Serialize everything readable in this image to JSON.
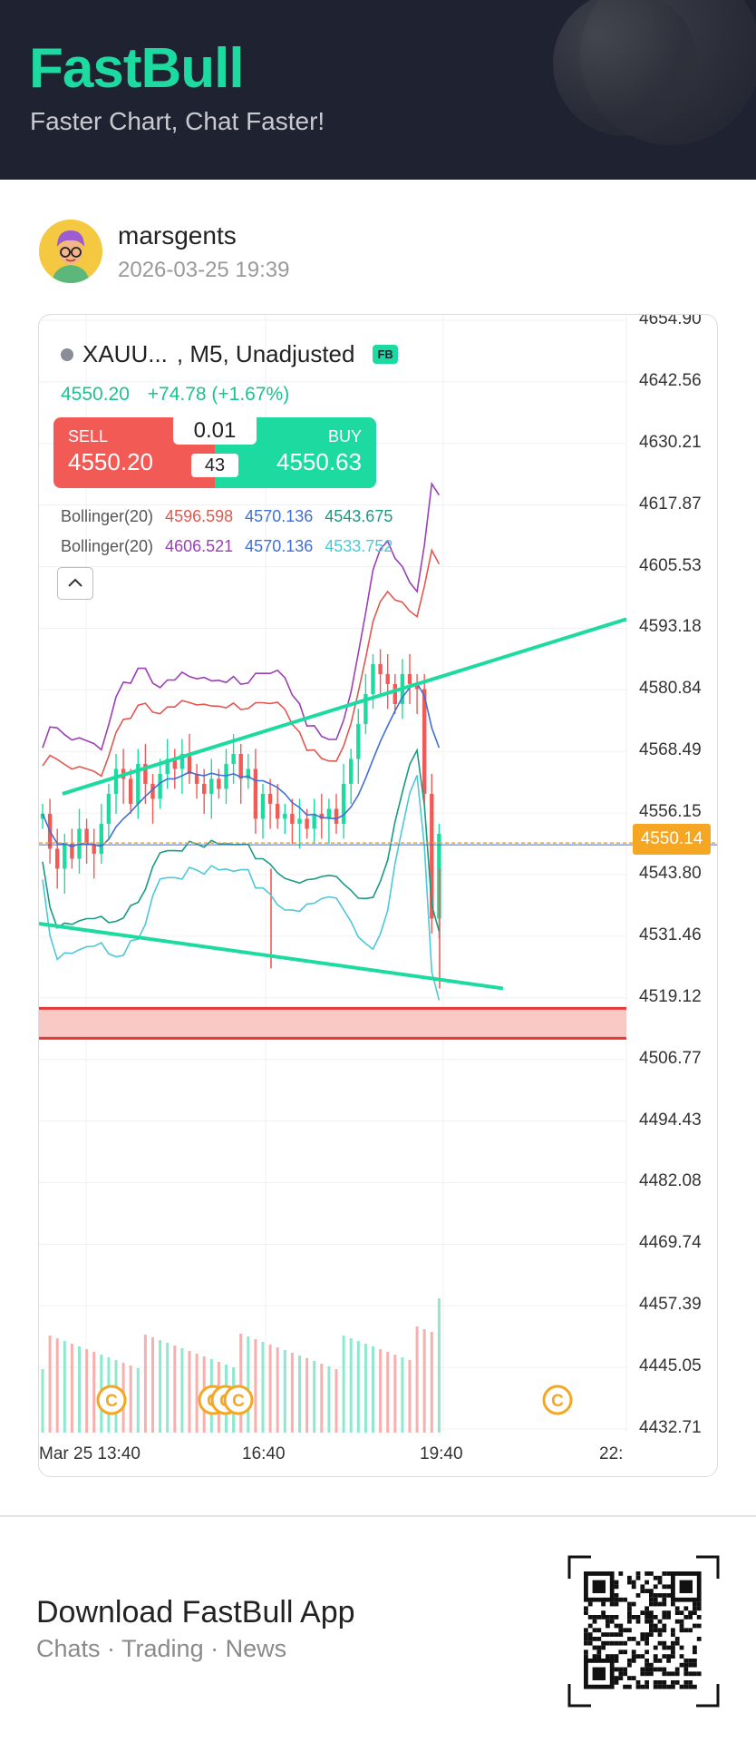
{
  "header": {
    "brand": "FastBull",
    "tagline": "Faster Chart, Chat Faster!"
  },
  "post": {
    "username": "marsgents",
    "timestamp": "2026-03-25 19:39",
    "avatar_icon": "avatar-cartoon"
  },
  "chart_widget": {
    "symbol": "XAUU...",
    "timeframe": ", M5, Unadjusted",
    "badge": "FB",
    "last_price": "4550.20",
    "change": "+74.78 (+1.67%)",
    "trade": {
      "sell_label": "SELL",
      "sell_price": "4550.20",
      "buy_label": "BUY",
      "buy_price": "4550.63",
      "lot": "0.01",
      "spread": "43"
    },
    "bollinger1": {
      "label": "Bollinger(20)",
      "upper": "4596.598",
      "middle": "4570.136",
      "lower": "4543.675"
    },
    "bollinger2": {
      "label": "Bollinger(20)",
      "upper": "4606.521",
      "middle": "4570.136",
      "lower": "4533.752"
    },
    "current_price_tag": "4550.14",
    "colors": {
      "up": "#1ddba0",
      "down": "#f25a56",
      "boll1_upper": "#e0584f",
      "boll1_mid": "#3f6fd8",
      "boll1_lower": "#1a9a82",
      "boll2_upper": "#9b3fb5",
      "boll2_lower": "#4cc8d8",
      "price_tag": "#f5a623"
    }
  },
  "chart_data": {
    "type": "candlestick",
    "y_ticks": [
      "4654.90",
      "4642.56",
      "4630.21",
      "4617.87",
      "4605.53",
      "4593.18",
      "4580.84",
      "4568.49",
      "4556.15",
      "4543.80",
      "4531.46",
      "4519.12",
      "4506.77",
      "4494.43",
      "4482.08",
      "4469.74",
      "4457.39",
      "4445.05",
      "4432.71"
    ],
    "x_ticks": [
      "Mar 25 13:40",
      "16:40",
      "19:40",
      "22:"
    ],
    "ylim": [
      4432.71,
      4654.9
    ],
    "closes": [
      4556,
      4549,
      4545,
      4550,
      4547,
      4553,
      4550,
      4548,
      4554,
      4560,
      4565,
      4563,
      4558,
      4566,
      4562,
      4559,
      4564,
      4567,
      4565,
      4568,
      4564,
      4562,
      4560,
      4563,
      4561,
      4566,
      4568,
      4563,
      4565,
      4555,
      4560,
      4558,
      4555,
      4556,
      4554,
      4555,
      4553,
      4556,
      4555,
      4557,
      4554,
      4562,
      4567,
      4574,
      4580,
      4586,
      4584,
      4582,
      4578,
      4584,
      4582,
      4581,
      4560,
      4535,
      4552
    ],
    "trend_lines": [
      {
        "from": [
          0.04,
          4560
        ],
        "to": [
          1.0,
          4595
        ]
      },
      {
        "from": [
          0.0,
          4534
        ],
        "to": [
          0.79,
          4521
        ]
      }
    ],
    "zone": [
      4511,
      4517
    ],
    "grid": true
  },
  "download": {
    "title": "Download FastBull App",
    "subtitle": "Chats · Trading · News",
    "qr_icon": "qr-code"
  }
}
